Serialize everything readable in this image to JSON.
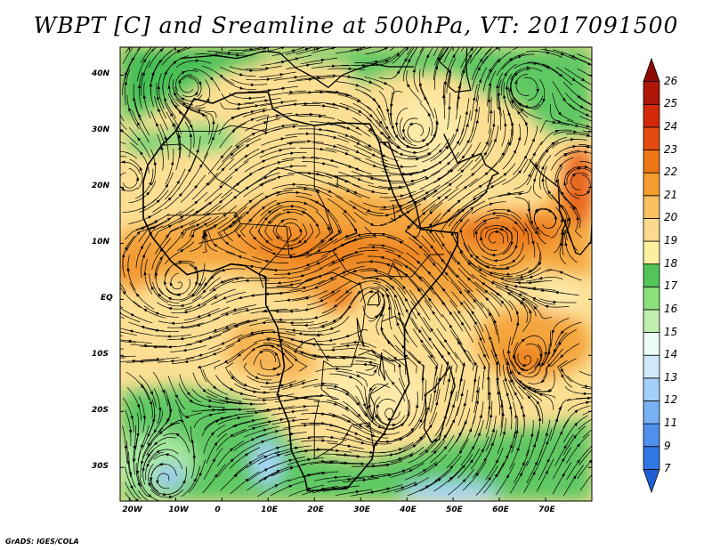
{
  "title": "WBPT [C] and Sreamline at 500hPa, VT: 2017091500",
  "credit": "GrADS: IGES/COLA",
  "map": {
    "lon_range": [
      -22,
      80
    ],
    "lat_range": [
      -36,
      45
    ],
    "x_ticks": [
      "20W",
      "10W",
      "0",
      "10E",
      "20E",
      "30E",
      "40E",
      "50E",
      "60E",
      "70E"
    ],
    "y_ticks": [
      "40N",
      "30N",
      "20N",
      "10N",
      "EQ",
      "10S",
      "20S",
      "30S"
    ],
    "field": "WBPT",
    "streamlines": true
  },
  "colorbar": {
    "labels": [
      "7",
      "9",
      "11",
      "12",
      "13",
      "14",
      "15",
      "16",
      "17",
      "18",
      "19",
      "20",
      "21",
      "22",
      "23",
      "24",
      "25",
      "26"
    ],
    "colors": [
      "#1e5fd6",
      "#3277e6",
      "#4f90ee",
      "#78b0f4",
      "#a4cff8",
      "#cfe9fc",
      "#eafaf7",
      "#bfeeb0",
      "#8de07e",
      "#52c458",
      "#fcefa0",
      "#fcd98e",
      "#f9be5e",
      "#f59d2e",
      "#ee7714",
      "#e54b10",
      "#d2290b",
      "#b01509",
      "#8c0a06"
    ]
  }
}
